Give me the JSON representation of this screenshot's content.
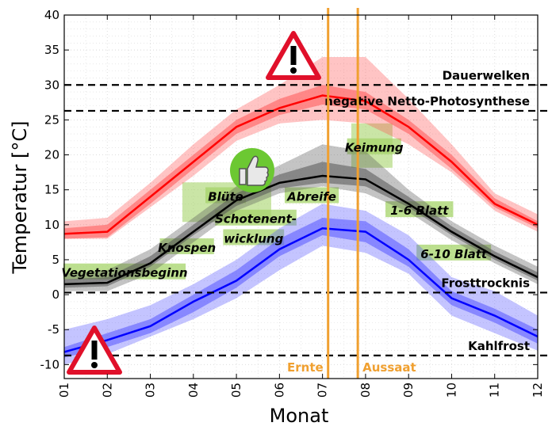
{
  "chart_data": {
    "type": "line",
    "xlabel": "Monat",
    "ylabel": "Temperatur [°C]",
    "xlim": [
      1,
      12
    ],
    "ylim": [
      -12,
      40
    ],
    "x_ticks": [
      "01",
      "02",
      "03",
      "04",
      "05",
      "06",
      "07",
      "08",
      "09",
      "10",
      "11",
      "12"
    ],
    "y_ticks": [
      -10,
      -5,
      0,
      5,
      10,
      15,
      20,
      25,
      30,
      35,
      40
    ],
    "grid": true,
    "months": [
      1,
      2,
      3,
      4,
      5,
      6,
      7,
      8,
      9,
      10,
      11,
      12
    ],
    "series": [
      {
        "color": "#ff0000",
        "band_color": "#ff5555",
        "values": [
          8.7,
          9.0,
          14.0,
          19.0,
          24.0,
          26.7,
          28.5,
          27.7,
          24.0,
          19.0,
          13.0,
          10.0
        ],
        "inner_band": [
          [
            8.0,
            9.5
          ],
          [
            8.2,
            10.0
          ],
          [
            13.0,
            15.0
          ],
          [
            18.0,
            20.0
          ],
          [
            23.0,
            25.0
          ],
          [
            25.7,
            28.0
          ],
          [
            27.2,
            30.0
          ],
          [
            26.5,
            29.0
          ],
          [
            23.0,
            25.0
          ],
          [
            18.0,
            20.0
          ],
          [
            12.5,
            13.8
          ],
          [
            9.5,
            10.5
          ]
        ],
        "outer_band": [
          [
            8.0,
            10.5
          ],
          [
            8.0,
            11.0
          ],
          [
            12.5,
            16.0
          ],
          [
            17.0,
            21.5
          ],
          [
            22.0,
            26.5
          ],
          [
            24.5,
            30.0
          ],
          [
            25.0,
            34.0
          ],
          [
            24.5,
            34.0
          ],
          [
            21.5,
            28.0
          ],
          [
            17.5,
            21.5
          ],
          [
            12.0,
            14.5
          ],
          [
            9.0,
            11.5
          ]
        ]
      },
      {
        "color": "#000000",
        "band_color": "#555555",
        "values": [
          1.5,
          1.7,
          4.5,
          9.0,
          13.5,
          16.0,
          17.0,
          16.5,
          13.0,
          9.0,
          5.5,
          2.5
        ],
        "inner_band": [
          [
            1.0,
            2.2
          ],
          [
            1.2,
            2.5
          ],
          [
            4.0,
            5.5
          ],
          [
            8.5,
            10.0
          ],
          [
            12.7,
            14.5
          ],
          [
            15.2,
            17.2
          ],
          [
            16.0,
            19.0
          ],
          [
            15.5,
            18.0
          ],
          [
            12.5,
            14.0
          ],
          [
            8.5,
            9.8
          ],
          [
            5.0,
            6.2
          ],
          [
            2.0,
            3.2
          ]
        ],
        "outer_band": [
          [
            0.5,
            3.0
          ],
          [
            0.5,
            3.5
          ],
          [
            3.0,
            6.5
          ],
          [
            7.5,
            11.0
          ],
          [
            12.0,
            15.5
          ],
          [
            14.5,
            18.5
          ],
          [
            15.5,
            21.5
          ],
          [
            14.5,
            20.5
          ],
          [
            11.8,
            15.0
          ],
          [
            7.8,
            10.5
          ],
          [
            4.5,
            7.0
          ],
          [
            1.5,
            4.0
          ]
        ]
      },
      {
        "color": "#0000ff",
        "band_color": "#5555ff",
        "values": [
          -8.2,
          -6.5,
          -4.5,
          -1.0,
          2.0,
          6.5,
          9.5,
          9.0,
          5.0,
          -0.5,
          -3.0,
          -6.0
        ],
        "inner_band": [
          [
            -9.0,
            -7.5
          ],
          [
            -7.5,
            -5.5
          ],
          [
            -5.5,
            -3.5
          ],
          [
            -2.5,
            0.0
          ],
          [
            1.0,
            3.5
          ],
          [
            5.5,
            8.0
          ],
          [
            8.5,
            11.0
          ],
          [
            7.5,
            10.5
          ],
          [
            4.0,
            6.5
          ],
          [
            -1.5,
            0.5
          ],
          [
            -4.0,
            -2.0
          ],
          [
            -7.0,
            -5.0
          ]
        ],
        "outer_band": [
          [
            -10.0,
            -5.0
          ],
          [
            -8.5,
            -3.5
          ],
          [
            -6.0,
            -1.5
          ],
          [
            -3.5,
            1.5
          ],
          [
            -0.5,
            5.0
          ],
          [
            3.5,
            9.5
          ],
          [
            7.0,
            13.0
          ],
          [
            6.0,
            12.0
          ],
          [
            3.0,
            8.5
          ],
          [
            -3.0,
            2.5
          ],
          [
            -5.5,
            0.5
          ],
          [
            -8.0,
            -3.0
          ]
        ]
      }
    ],
    "reference_lines": [
      {
        "y": 30,
        "label": "Dauerwelken"
      },
      {
        "y": 26.3,
        "label": "negative Netto-Photosynthese"
      },
      {
        "y": 0.3,
        "label": "Frosttrocknis"
      },
      {
        "y": -8.7,
        "label": "Kahlfrost"
      }
    ],
    "events": [
      {
        "x": 7.13,
        "label": "Ernte"
      },
      {
        "x": 7.82,
        "label": "Aussaat"
      }
    ],
    "event_color": "#f0a030",
    "stages": [
      {
        "label": "Vegetationsbeginn",
        "x": 2.4,
        "y": 3.1
      },
      {
        "label": "Knospen",
        "x": 3.85,
        "y": 6.7
      },
      {
        "label": "Blüte",
        "x": 4.75,
        "y": 14.0
      },
      {
        "label": "Schotenent-",
        "x": 5.45,
        "y": 10.8
      },
      {
        "label": "wicklung",
        "x": 5.4,
        "y": 8.0
      },
      {
        "label": "Abreife",
        "x": 6.75,
        "y": 14.0
      },
      {
        "label": "Keimung",
        "x": 8.2,
        "y": 21.0
      },
      {
        "label": "1-6 Blatt",
        "x": 9.25,
        "y": 12.0
      },
      {
        "label": "6-10 Blatt",
        "x": 10.05,
        "y": 5.8
      }
    ],
    "stage_highlight_color": "#a6d46a",
    "warning_icons": [
      "warning-triangle-icon",
      "warning-triangle-icon"
    ],
    "approval_icon": "thumbs-up-icon"
  }
}
